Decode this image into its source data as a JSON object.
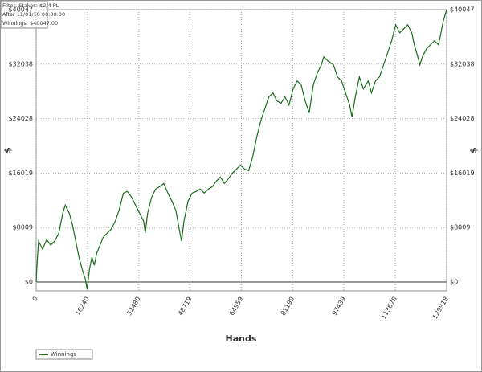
{
  "chart_data": {
    "type": "line",
    "xlabel": "Hands",
    "ylabel": "$",
    "annotations": [
      "Filter: Stakes: $2/4 PL",
      "After 11/01/10 00:00:00",
      "Winnings: $40047.00"
    ],
    "x": [
      0,
      256,
      767,
      2046,
      3324,
      4603,
      5881,
      7160,
      8438,
      9205,
      10484,
      11507,
      12529,
      13552,
      14575,
      15598,
      16109,
      16876,
      17643,
      18410,
      19178,
      20200,
      21223,
      22502,
      23780,
      25059,
      26337,
      27616,
      28894,
      30173,
      31451,
      32730,
      34008,
      34520,
      35287,
      36565,
      37844,
      39122,
      40401,
      41679,
      42958,
      44236,
      45515,
      46026,
      46793,
      48072,
      49350,
      50629,
      51907,
      53186,
      54464,
      55743,
      57021,
      58300,
      59578,
      60857,
      62135,
      63414,
      64692,
      65971,
      67249,
      68528,
      69806,
      71085,
      72363,
      73642,
      74920,
      76199,
      77477,
      78756,
      80034,
      81313,
      82591,
      83870,
      85148,
      86427,
      87705,
      88984,
      90262,
      91029,
      92308,
      94098,
      95376,
      96655,
      97933,
      99212,
      99979,
      101002,
      102280,
      103559,
      105093,
      106116,
      107394,
      108673,
      109951,
      111230,
      112508,
      113787,
      115065,
      116344,
      117622,
      118901,
      119668,
      120435,
      121458,
      122225,
      123503,
      124782,
      126060,
      127339,
      128106,
      128874,
      129918
    ],
    "series": [
      {
        "name": "Winnings",
        "color": "#1a6e1a",
        "values": [
          0,
          2474,
          6008,
          4830,
          6243,
          5419,
          6008,
          7186,
          10131,
          11309,
          10131,
          8364,
          6008,
          3652,
          1885,
          353,
          -1060,
          1885,
          3652,
          2474,
          4241,
          5419,
          6597,
          7186,
          7775,
          8953,
          10720,
          13076,
          13311,
          12487,
          11309,
          10131,
          8953,
          7186,
          10131,
          12487,
          13665,
          14018,
          14489,
          13076,
          11898,
          10484,
          7186,
          6008,
          8953,
          11898,
          13076,
          13311,
          13665,
          13076,
          13665,
          14018,
          14843,
          15432,
          14489,
          15196,
          16021,
          16610,
          17199,
          16610,
          16374,
          18377,
          21322,
          23678,
          25445,
          27212,
          27801,
          26623,
          26269,
          27212,
          26034,
          28390,
          29568,
          28979,
          26623,
          24856,
          28979,
          30746,
          31924,
          33102,
          32513,
          31924,
          30157,
          29568,
          27801,
          26034,
          24267,
          27212,
          30157,
          28390,
          29568,
          27801,
          29568,
          30157,
          31924,
          33691,
          35458,
          37814,
          36636,
          37225,
          37814,
          36636,
          34869,
          33691,
          31924,
          33102,
          34280,
          34869,
          35458,
          34869,
          36636,
          38403,
          40047
        ]
      }
    ],
    "xlim": [
      0,
      129918
    ],
    "xticks": [
      0,
      16240,
      32480,
      48719,
      64959,
      81199,
      97439,
      113678,
      129918
    ],
    "ylim": [
      -1300,
      40047
    ],
    "yticks": [
      {
        "value": 0,
        "label": "$0"
      },
      {
        "value": 8009,
        "label": "$8009"
      },
      {
        "value": 16019,
        "label": "$16019"
      },
      {
        "value": 24028,
        "label": "$24028"
      },
      {
        "value": 32038,
        "label": "$32038"
      },
      {
        "value": 40047,
        "label": "$40047"
      }
    ],
    "grid": true
  }
}
